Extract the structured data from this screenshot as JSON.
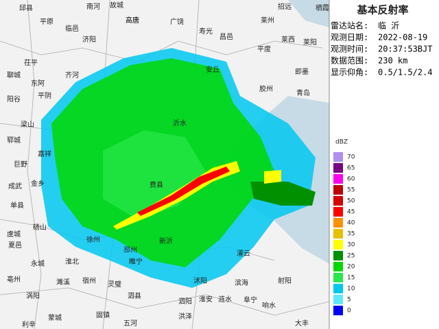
{
  "header": {
    "title": "基本反射率"
  },
  "info": [
    {
      "label": "雷达站名:",
      "value": "临 沂"
    },
    {
      "label": "观测日期:",
      "value": "2022-08-19"
    },
    {
      "label": "观测时间:",
      "value": "20:37:53BJT"
    },
    {
      "label": "数据范围:",
      "value": "230 km"
    },
    {
      "label": "显示仰角:",
      "value": "0.5/1.5/2.4"
    }
  ],
  "legend": {
    "unit": "dBZ",
    "levels": [
      {
        "value": 70,
        "color": "#ad90f0"
      },
      {
        "value": 65,
        "color": "#780084"
      },
      {
        "value": 60,
        "color": "#ff00f0"
      },
      {
        "value": 55,
        "color": "#c00000"
      },
      {
        "value": 50,
        "color": "#d60000"
      },
      {
        "value": 45,
        "color": "#ff0000"
      },
      {
        "value": 40,
        "color": "#ff9000"
      },
      {
        "value": 35,
        "color": "#e7c000"
      },
      {
        "value": 30,
        "color": "#ffff00"
      },
      {
        "value": 25,
        "color": "#009000"
      },
      {
        "value": 20,
        "color": "#00d800"
      },
      {
        "value": 15,
        "color": "#2ae84a"
      },
      {
        "value": 10,
        "color": "#00c8f0"
      },
      {
        "value": 5,
        "color": "#60e8f8"
      },
      {
        "value": 0,
        "color": "#0000f6"
      }
    ]
  },
  "places": [
    "邱县",
    "南河",
    "故城",
    "高唐",
    "广饶",
    "寿光",
    "莱州",
    "招远",
    "栖霞",
    "平原",
    "临邑",
    "济阳",
    "昌邑",
    "莱西",
    "莱阳",
    "平度",
    "高唐",
    "茌平",
    "聊城",
    "东阿",
    "齐河",
    "安丘",
    "即墨",
    "平阴",
    "阳谷",
    "胶州",
    "青岛",
    "梁山",
    "郓城",
    "嘉祥",
    "巨野",
    "成武",
    "金乡",
    "单县",
    "砀山",
    "虞城",
    "夏邑",
    "永城",
    "亳州",
    "涡阳",
    "利辛",
    "蒙城",
    "濉溪",
    "淮北",
    "宿州",
    "灵璧",
    "泗县",
    "固镇",
    "五河",
    "睢宁",
    "沭阳",
    "泗阳",
    "洪泽",
    "涟水",
    "淮安",
    "滨海",
    "响水",
    "射阳",
    "阜宁",
    "灌云",
    "大丰",
    "新沂",
    "邳州",
    "徐州",
    "费县",
    "沂水"
  ]
}
